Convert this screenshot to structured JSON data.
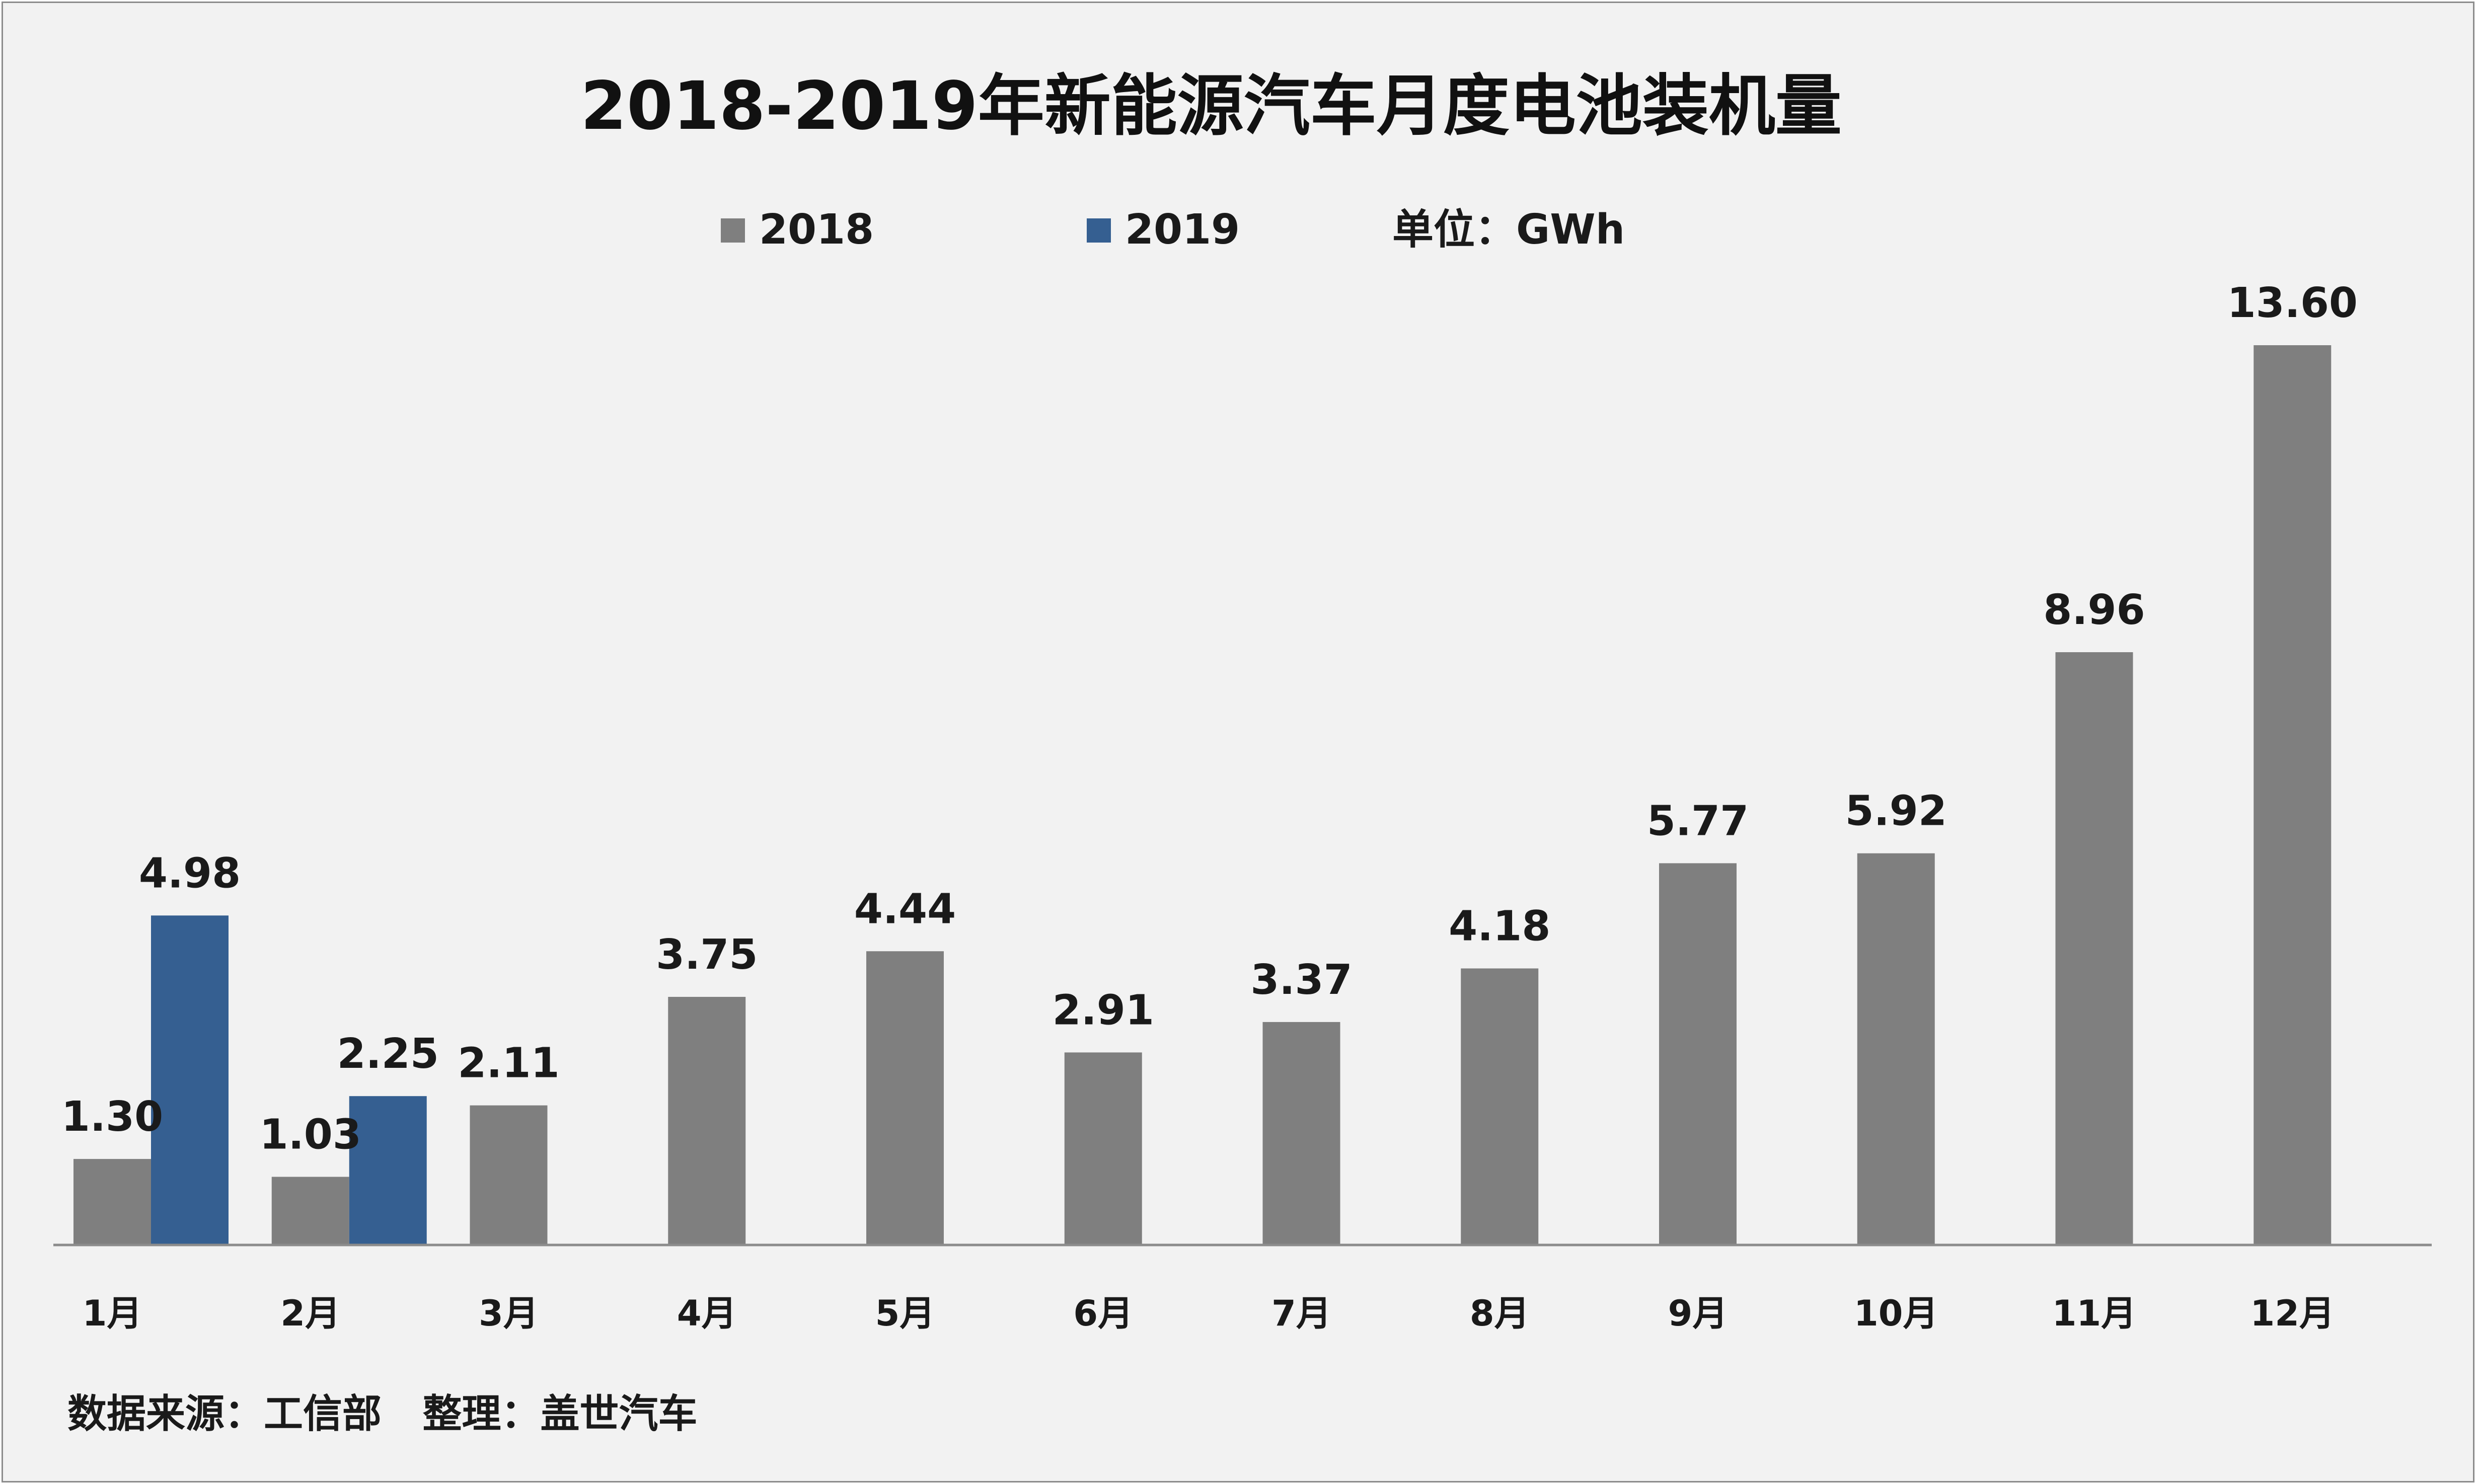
{
  "chart_data": {
    "type": "bar",
    "title": "2018-2019年新能源汽车月度电池装机量",
    "unit_label": "单位：GWh",
    "categories": [
      "1月",
      "2月",
      "3月",
      "4月",
      "5月",
      "6月",
      "7月",
      "8月",
      "9月",
      "10月",
      "11月",
      "12月"
    ],
    "series": [
      {
        "name": "2018",
        "color": "#7f7f7f",
        "values": [
          1.3,
          1.03,
          2.11,
          3.75,
          4.44,
          2.91,
          3.37,
          4.18,
          5.77,
          5.92,
          8.96,
          13.6
        ],
        "labels": [
          "1.30",
          "1.03",
          "2.11",
          "3.75",
          "4.44",
          "2.91",
          "3.37",
          "4.18",
          "5.77",
          "5.92",
          "8.96",
          "13.60"
        ]
      },
      {
        "name": "2019",
        "color": "#355f91",
        "values": [
          4.98,
          2.25,
          null,
          null,
          null,
          null,
          null,
          null,
          null,
          null,
          null,
          null
        ],
        "labels": [
          "4.98",
          "2.25",
          "",
          "",
          "",
          "",
          "",
          "",
          "",
          "",
          "",
          ""
        ]
      }
    ],
    "xlabel": "",
    "ylabel": "",
    "ylim": [
      0,
      13.6
    ],
    "legend_position": "top",
    "grid": false
  },
  "source_note": "数据来源：工信部   整理：盖世汽车"
}
